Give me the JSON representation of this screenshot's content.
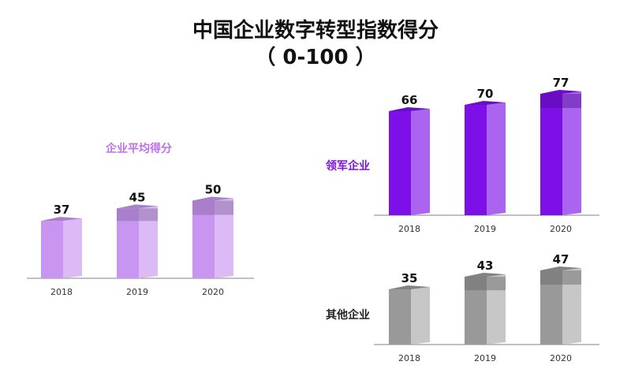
{
  "title": "中国企业数字转型指数得分",
  "subtitle": "（ 0-100 ）",
  "colors": {
    "avg": "#c895f0",
    "leader": "#7d10e8",
    "other": "#999999",
    "baseline": "#9a9a9a"
  },
  "chart_data": [
    {
      "type": "bar",
      "title": "企业平均得分",
      "categories": [
        "2018",
        "2019",
        "2020"
      ],
      "values": [
        37,
        45,
        50
      ],
      "ylim": [
        0,
        100
      ],
      "grid": false
    },
    {
      "type": "bar",
      "title": "领军企业",
      "categories": [
        "2018",
        "2019",
        "2020"
      ],
      "values": [
        66,
        70,
        77
      ],
      "ylim": [
        0,
        100
      ],
      "grid": false
    },
    {
      "type": "bar",
      "title": "其他企业",
      "categories": [
        "2018",
        "2019",
        "2020"
      ],
      "values": [
        35,
        43,
        47
      ],
      "ylim": [
        0,
        100
      ],
      "grid": false
    }
  ]
}
